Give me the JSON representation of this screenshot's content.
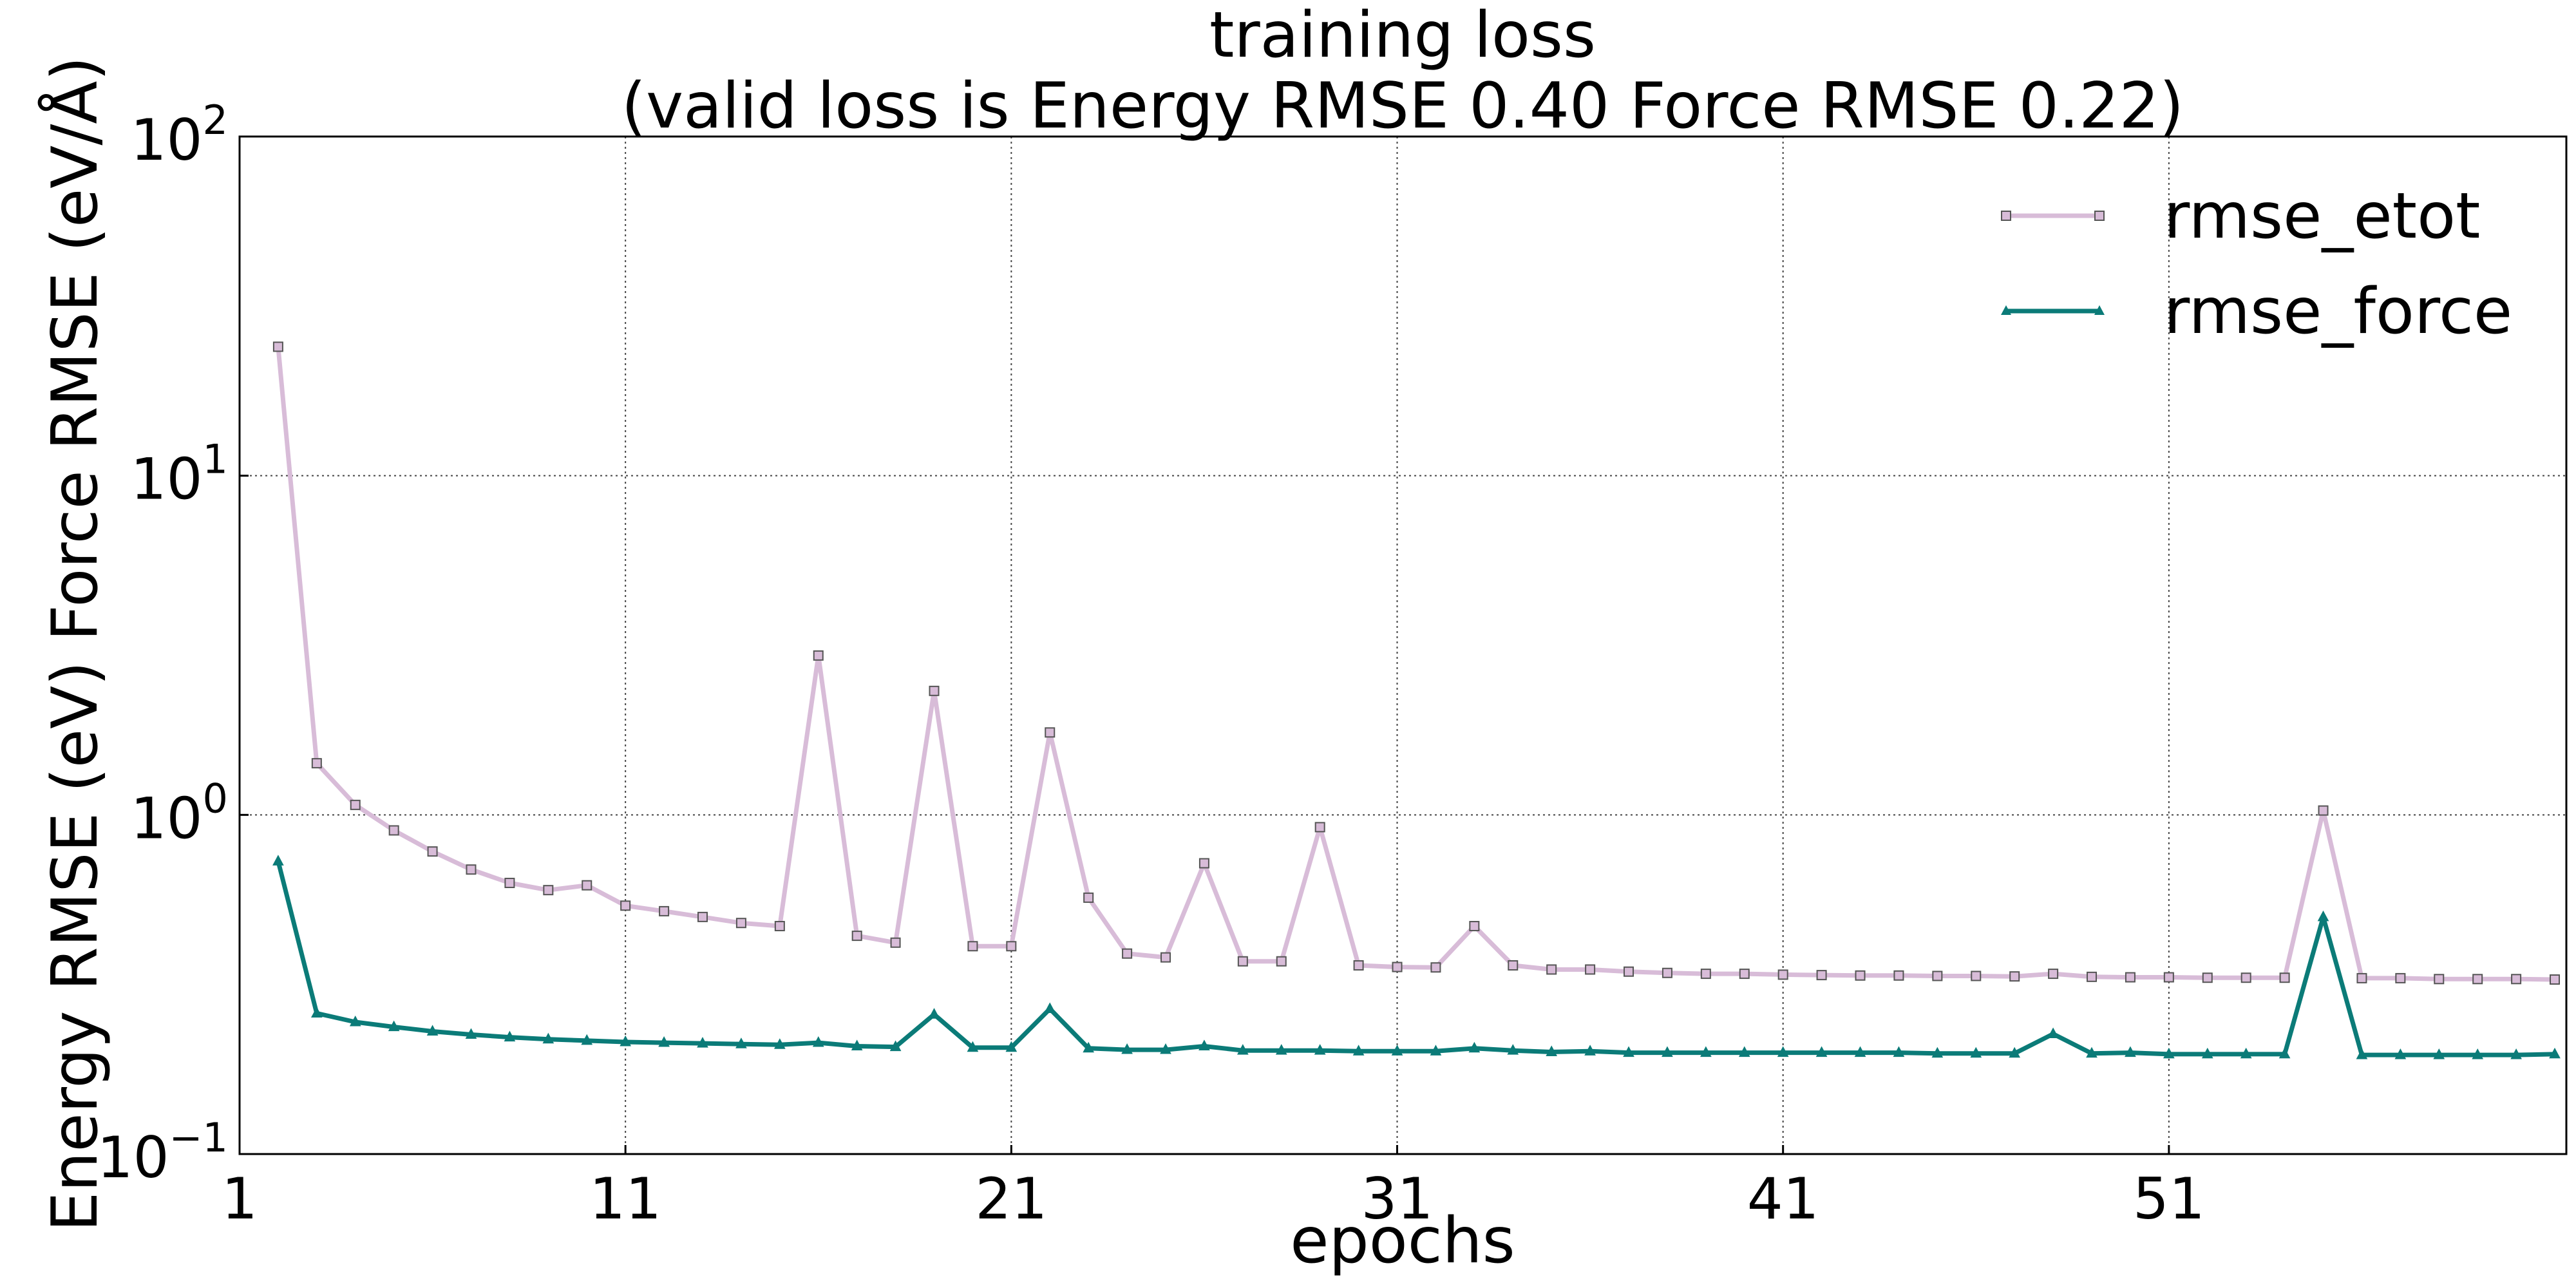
{
  "chart_data": {
    "type": "line",
    "title": "training loss",
    "subtitle": "(valid loss is Energy RMSE 0.40  Force RMSE 0.22)",
    "xlabel": "epochs",
    "ylabel": "Energy RMSE (eV)  Force RMSE (eV/Å)",
    "yscale": "log",
    "ylim": [
      0.1,
      100
    ],
    "xlim": [
      1,
      61.3
    ],
    "grid": true,
    "legend_position": "top-right",
    "x_ticks": [
      "1",
      "11",
      "21",
      "31",
      "41",
      "51"
    ],
    "y_ticks": [
      {
        "base": "10",
        "exp": "−1",
        "value": 0.1
      },
      {
        "base": "10",
        "exp": "0",
        "value": 1
      },
      {
        "base": "10",
        "exp": "1",
        "value": 10
      },
      {
        "base": "10",
        "exp": "2",
        "value": 100
      }
    ],
    "x": [
      2,
      3,
      4,
      5,
      6,
      7,
      8,
      9,
      10,
      11,
      12,
      13,
      14,
      15,
      16,
      17,
      18,
      19,
      20,
      21,
      22,
      23,
      24,
      25,
      26,
      27,
      28,
      29,
      30,
      31,
      32,
      33,
      34,
      35,
      36,
      37,
      38,
      39,
      40,
      41,
      42,
      43,
      44,
      45,
      46,
      47,
      48,
      49,
      50,
      51,
      52,
      53,
      54,
      55,
      56,
      57,
      58,
      59,
      60,
      61
    ],
    "series": [
      {
        "name": "rmse_etot",
        "color": "#d8bcd8",
        "marker": "square",
        "values": [
          24.0,
          1.42,
          1.07,
          0.9,
          0.78,
          0.69,
          0.63,
          0.6,
          0.62,
          0.54,
          0.52,
          0.5,
          0.48,
          0.47,
          2.95,
          0.44,
          0.42,
          2.32,
          0.41,
          0.41,
          1.75,
          0.57,
          0.39,
          0.38,
          0.72,
          0.37,
          0.37,
          0.92,
          0.36,
          0.356,
          0.355,
          0.47,
          0.36,
          0.35,
          0.35,
          0.345,
          0.342,
          0.34,
          0.34,
          0.338,
          0.337,
          0.336,
          0.336,
          0.335,
          0.335,
          0.334,
          0.34,
          0.333,
          0.332,
          0.332,
          0.331,
          0.331,
          0.331,
          1.03,
          0.33,
          0.33,
          0.328,
          0.328,
          0.328,
          0.327
        ]
      },
      {
        "name": "rmse_force",
        "color": "#0b7b78",
        "marker": "triangle",
        "values": [
          0.73,
          0.26,
          0.245,
          0.237,
          0.23,
          0.225,
          0.221,
          0.218,
          0.216,
          0.214,
          0.213,
          0.212,
          0.211,
          0.21,
          0.213,
          0.208,
          0.207,
          0.258,
          0.206,
          0.206,
          0.268,
          0.205,
          0.203,
          0.203,
          0.208,
          0.202,
          0.202,
          0.202,
          0.201,
          0.201,
          0.201,
          0.205,
          0.202,
          0.2,
          0.201,
          0.199,
          0.199,
          0.199,
          0.199,
          0.199,
          0.199,
          0.199,
          0.199,
          0.198,
          0.198,
          0.198,
          0.226,
          0.198,
          0.199,
          0.197,
          0.197,
          0.197,
          0.197,
          0.5,
          0.196,
          0.196,
          0.196,
          0.196,
          0.196,
          0.197
        ]
      }
    ]
  }
}
